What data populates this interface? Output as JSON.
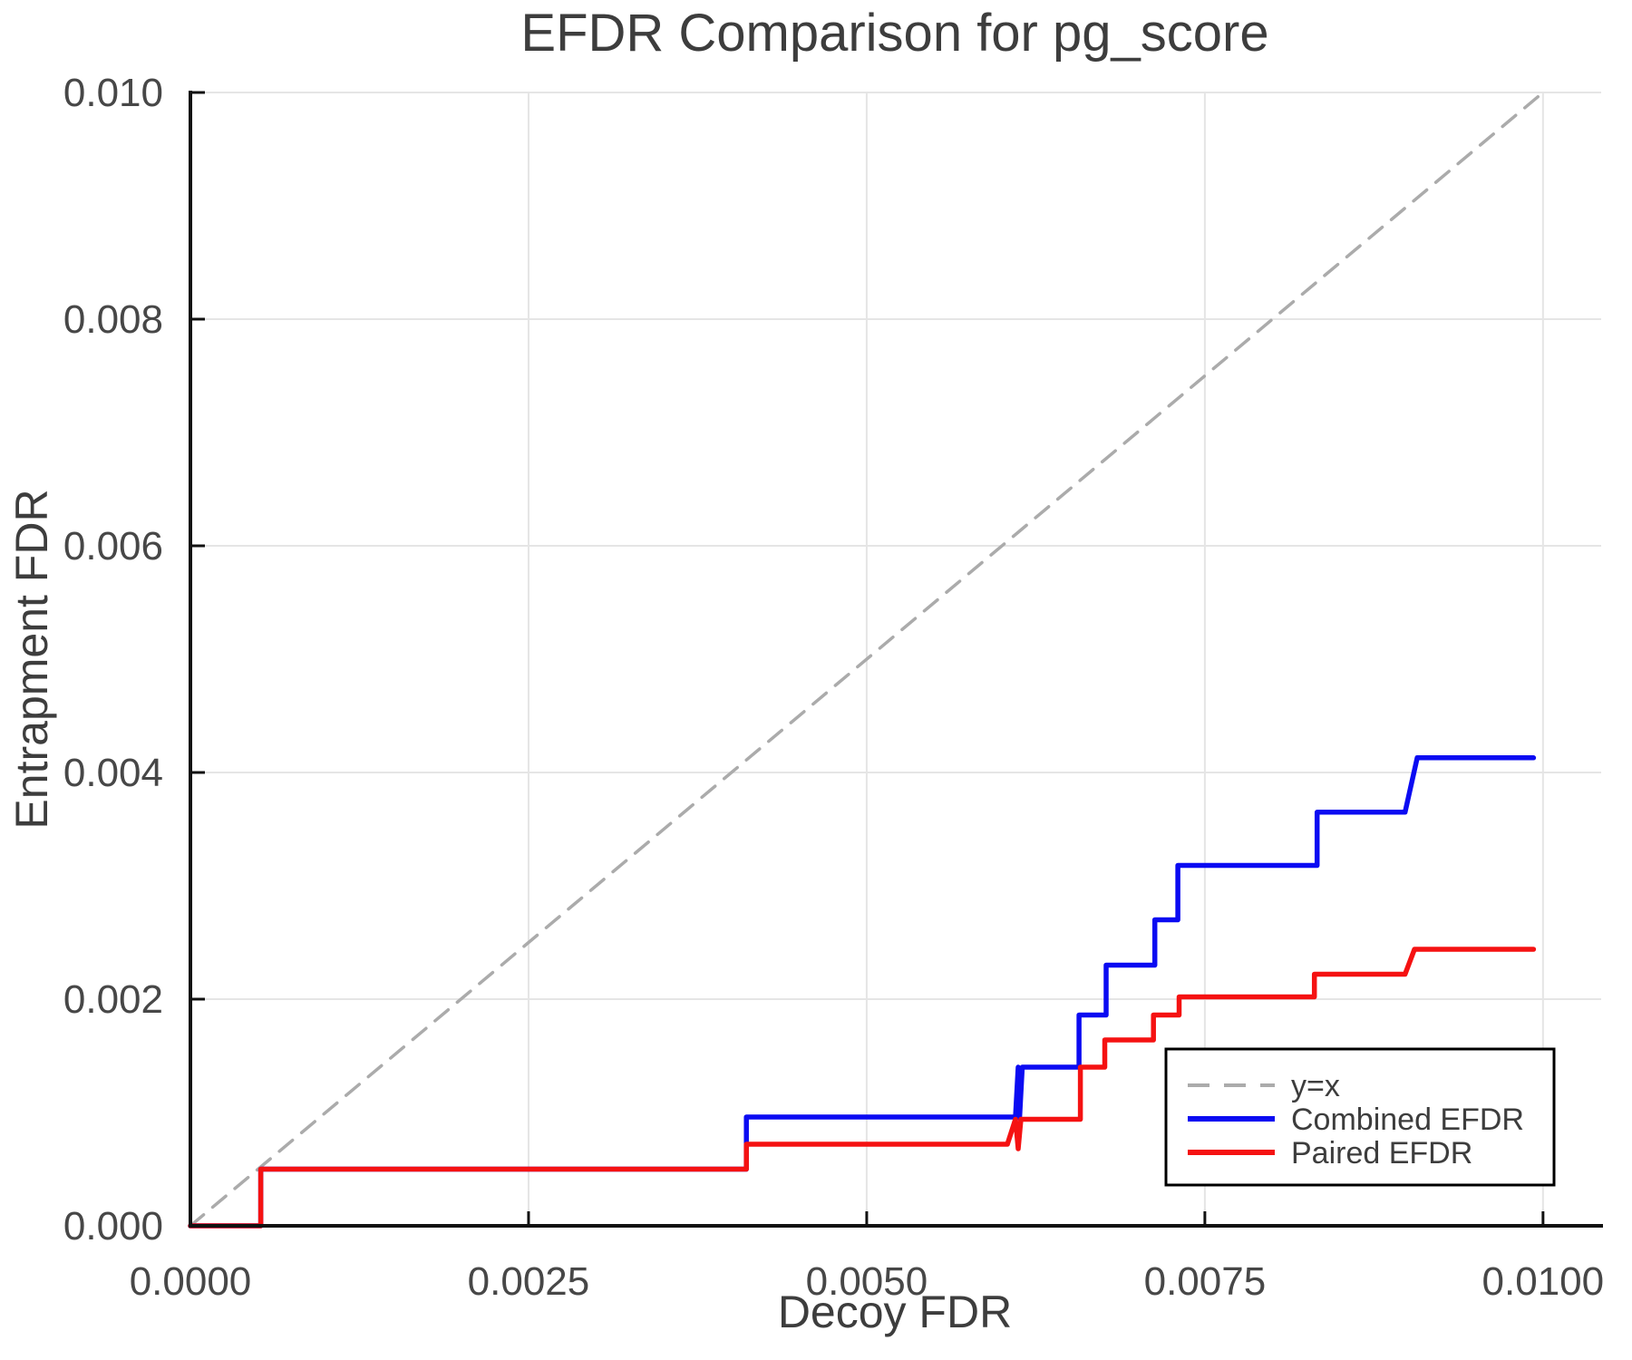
{
  "chart_data": {
    "type": "line",
    "title": "EFDR Comparison for pg_score",
    "xlabel": "Decoy FDR",
    "ylabel": "Entrapment FDR",
    "xlim": [
      0,
      0.01043
    ],
    "ylim": [
      0,
      0.01
    ],
    "grid": true,
    "background": "#ffffff",
    "colors": {
      "identity_line": "#ABABAB",
      "combined": "#0B0BF2",
      "paired": "#F51212",
      "gridline": "#E5E5E5",
      "spine": "#111111",
      "text": "#3D3D3D"
    },
    "x_ticks": {
      "values": [
        0.0,
        0.0025,
        0.005,
        0.0075,
        0.01
      ],
      "labels": [
        "0.0000",
        "0.0025",
        "0.0050",
        "0.0075",
        "0.0100"
      ]
    },
    "y_ticks": {
      "values": [
        0.0,
        0.002,
        0.004,
        0.006,
        0.008,
        0.01
      ],
      "labels": [
        "0.000",
        "0.002",
        "0.004",
        "0.006",
        "0.008",
        "0.010"
      ]
    },
    "legend": {
      "position": "lower right",
      "entries": [
        {
          "label": "y=x",
          "style": "dashed",
          "color": "#ABABAB"
        },
        {
          "label": "Combined EFDR",
          "style": "solid",
          "color": "#0B0BF2"
        },
        {
          "label": "Paired EFDR",
          "style": "solid",
          "color": "#F51212"
        }
      ]
    },
    "series": [
      {
        "name": "y=x",
        "style": "dashed",
        "color": "#ABABAB",
        "points": [
          [
            0,
            0
          ],
          [
            0.01,
            0.01
          ]
        ]
      },
      {
        "name": "Combined EFDR",
        "style": "solid",
        "color": "#0B0BF2",
        "points": [
          [
            0,
            0
          ],
          [
            0.00052,
            0
          ],
          [
            0.00052,
            0.0005
          ],
          [
            0.00411,
            0.0005
          ],
          [
            0.00411,
            0.00096
          ],
          [
            0.0061,
            0.00096
          ],
          [
            0.00612,
            0.0014
          ],
          [
            0.00613,
            0.00095
          ],
          [
            0.00615,
            0.0014
          ],
          [
            0.00657,
            0.0014
          ],
          [
            0.00657,
            0.00186
          ],
          [
            0.00677,
            0.00186
          ],
          [
            0.00677,
            0.0023
          ],
          [
            0.00713,
            0.0023
          ],
          [
            0.00713,
            0.0027
          ],
          [
            0.0073,
            0.0027
          ],
          [
            0.0073,
            0.00318
          ],
          [
            0.00833,
            0.00318
          ],
          [
            0.00833,
            0.00365
          ],
          [
            0.00898,
            0.00365
          ],
          [
            0.00907,
            0.00413
          ],
          [
            0.00993,
            0.00413
          ]
        ]
      },
      {
        "name": "Paired EFDR",
        "style": "solid",
        "color": "#F51212",
        "points": [
          [
            0,
            0
          ],
          [
            0.00052,
            0
          ],
          [
            0.00052,
            0.0005
          ],
          [
            0.00411,
            0.0005
          ],
          [
            0.00411,
            0.00072
          ],
          [
            0.00604,
            0.00072
          ],
          [
            0.0061,
            0.00094
          ],
          [
            0.00612,
            0.00068
          ],
          [
            0.00614,
            0.00094
          ],
          [
            0.00658,
            0.00094
          ],
          [
            0.00658,
            0.0014
          ],
          [
            0.00676,
            0.0014
          ],
          [
            0.00676,
            0.00164
          ],
          [
            0.00712,
            0.00164
          ],
          [
            0.00712,
            0.00186
          ],
          [
            0.00731,
            0.00186
          ],
          [
            0.00731,
            0.00202
          ],
          [
            0.00831,
            0.00202
          ],
          [
            0.00831,
            0.00222
          ],
          [
            0.00898,
            0.00222
          ],
          [
            0.00905,
            0.00244
          ],
          [
            0.00993,
            0.00244
          ]
        ]
      }
    ]
  }
}
